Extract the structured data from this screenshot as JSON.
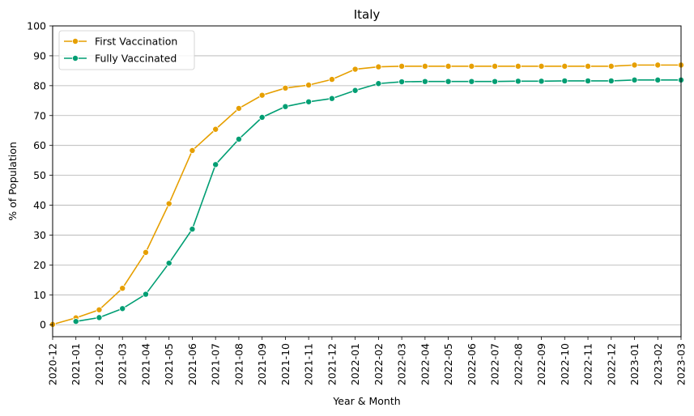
{
  "chart_data": {
    "type": "line",
    "title": "Italy",
    "xlabel": "Year & Month",
    "ylabel": "% of Population",
    "categories": [
      "2020-12",
      "2021-01",
      "2021-02",
      "2021-03",
      "2021-04",
      "2021-05",
      "2021-06",
      "2021-07",
      "2021-08",
      "2021-09",
      "2021-10",
      "2021-11",
      "2021-12",
      "2022-01",
      "2022-02",
      "2022-03",
      "2022-04",
      "2022-05",
      "2022-06",
      "2022-07",
      "2022-08",
      "2022-09",
      "2022-10",
      "2022-11",
      "2022-12",
      "2023-01",
      "2023-02",
      "2023-03"
    ],
    "ylim": [
      -4,
      100
    ],
    "yticks": [
      0,
      10,
      20,
      30,
      40,
      50,
      60,
      70,
      80,
      90,
      100
    ],
    "grid": "y",
    "legend_position": "top-left",
    "series": [
      {
        "name": "First Vaccination",
        "color": "#E69F00",
        "values": [
          0.1,
          2.3,
          5.0,
          12.2,
          24.2,
          40.5,
          58.3,
          65.4,
          72.4,
          76.8,
          79.2,
          80.2,
          82.1,
          85.5,
          86.3,
          86.5,
          86.5,
          86.5,
          86.5,
          86.5,
          86.5,
          86.5,
          86.5,
          86.5,
          86.5,
          86.9,
          86.9,
          86.9
        ]
      },
      {
        "name": "Fully Vaccinated",
        "color": "#009E73",
        "values": [
          null,
          1.1,
          2.4,
          5.4,
          10.2,
          20.6,
          32.0,
          53.6,
          62.1,
          69.4,
          73.0,
          74.6,
          75.7,
          78.4,
          80.7,
          81.3,
          81.4,
          81.4,
          81.4,
          81.4,
          81.5,
          81.5,
          81.6,
          81.6,
          81.6,
          81.9,
          81.9,
          81.9
        ]
      }
    ]
  }
}
